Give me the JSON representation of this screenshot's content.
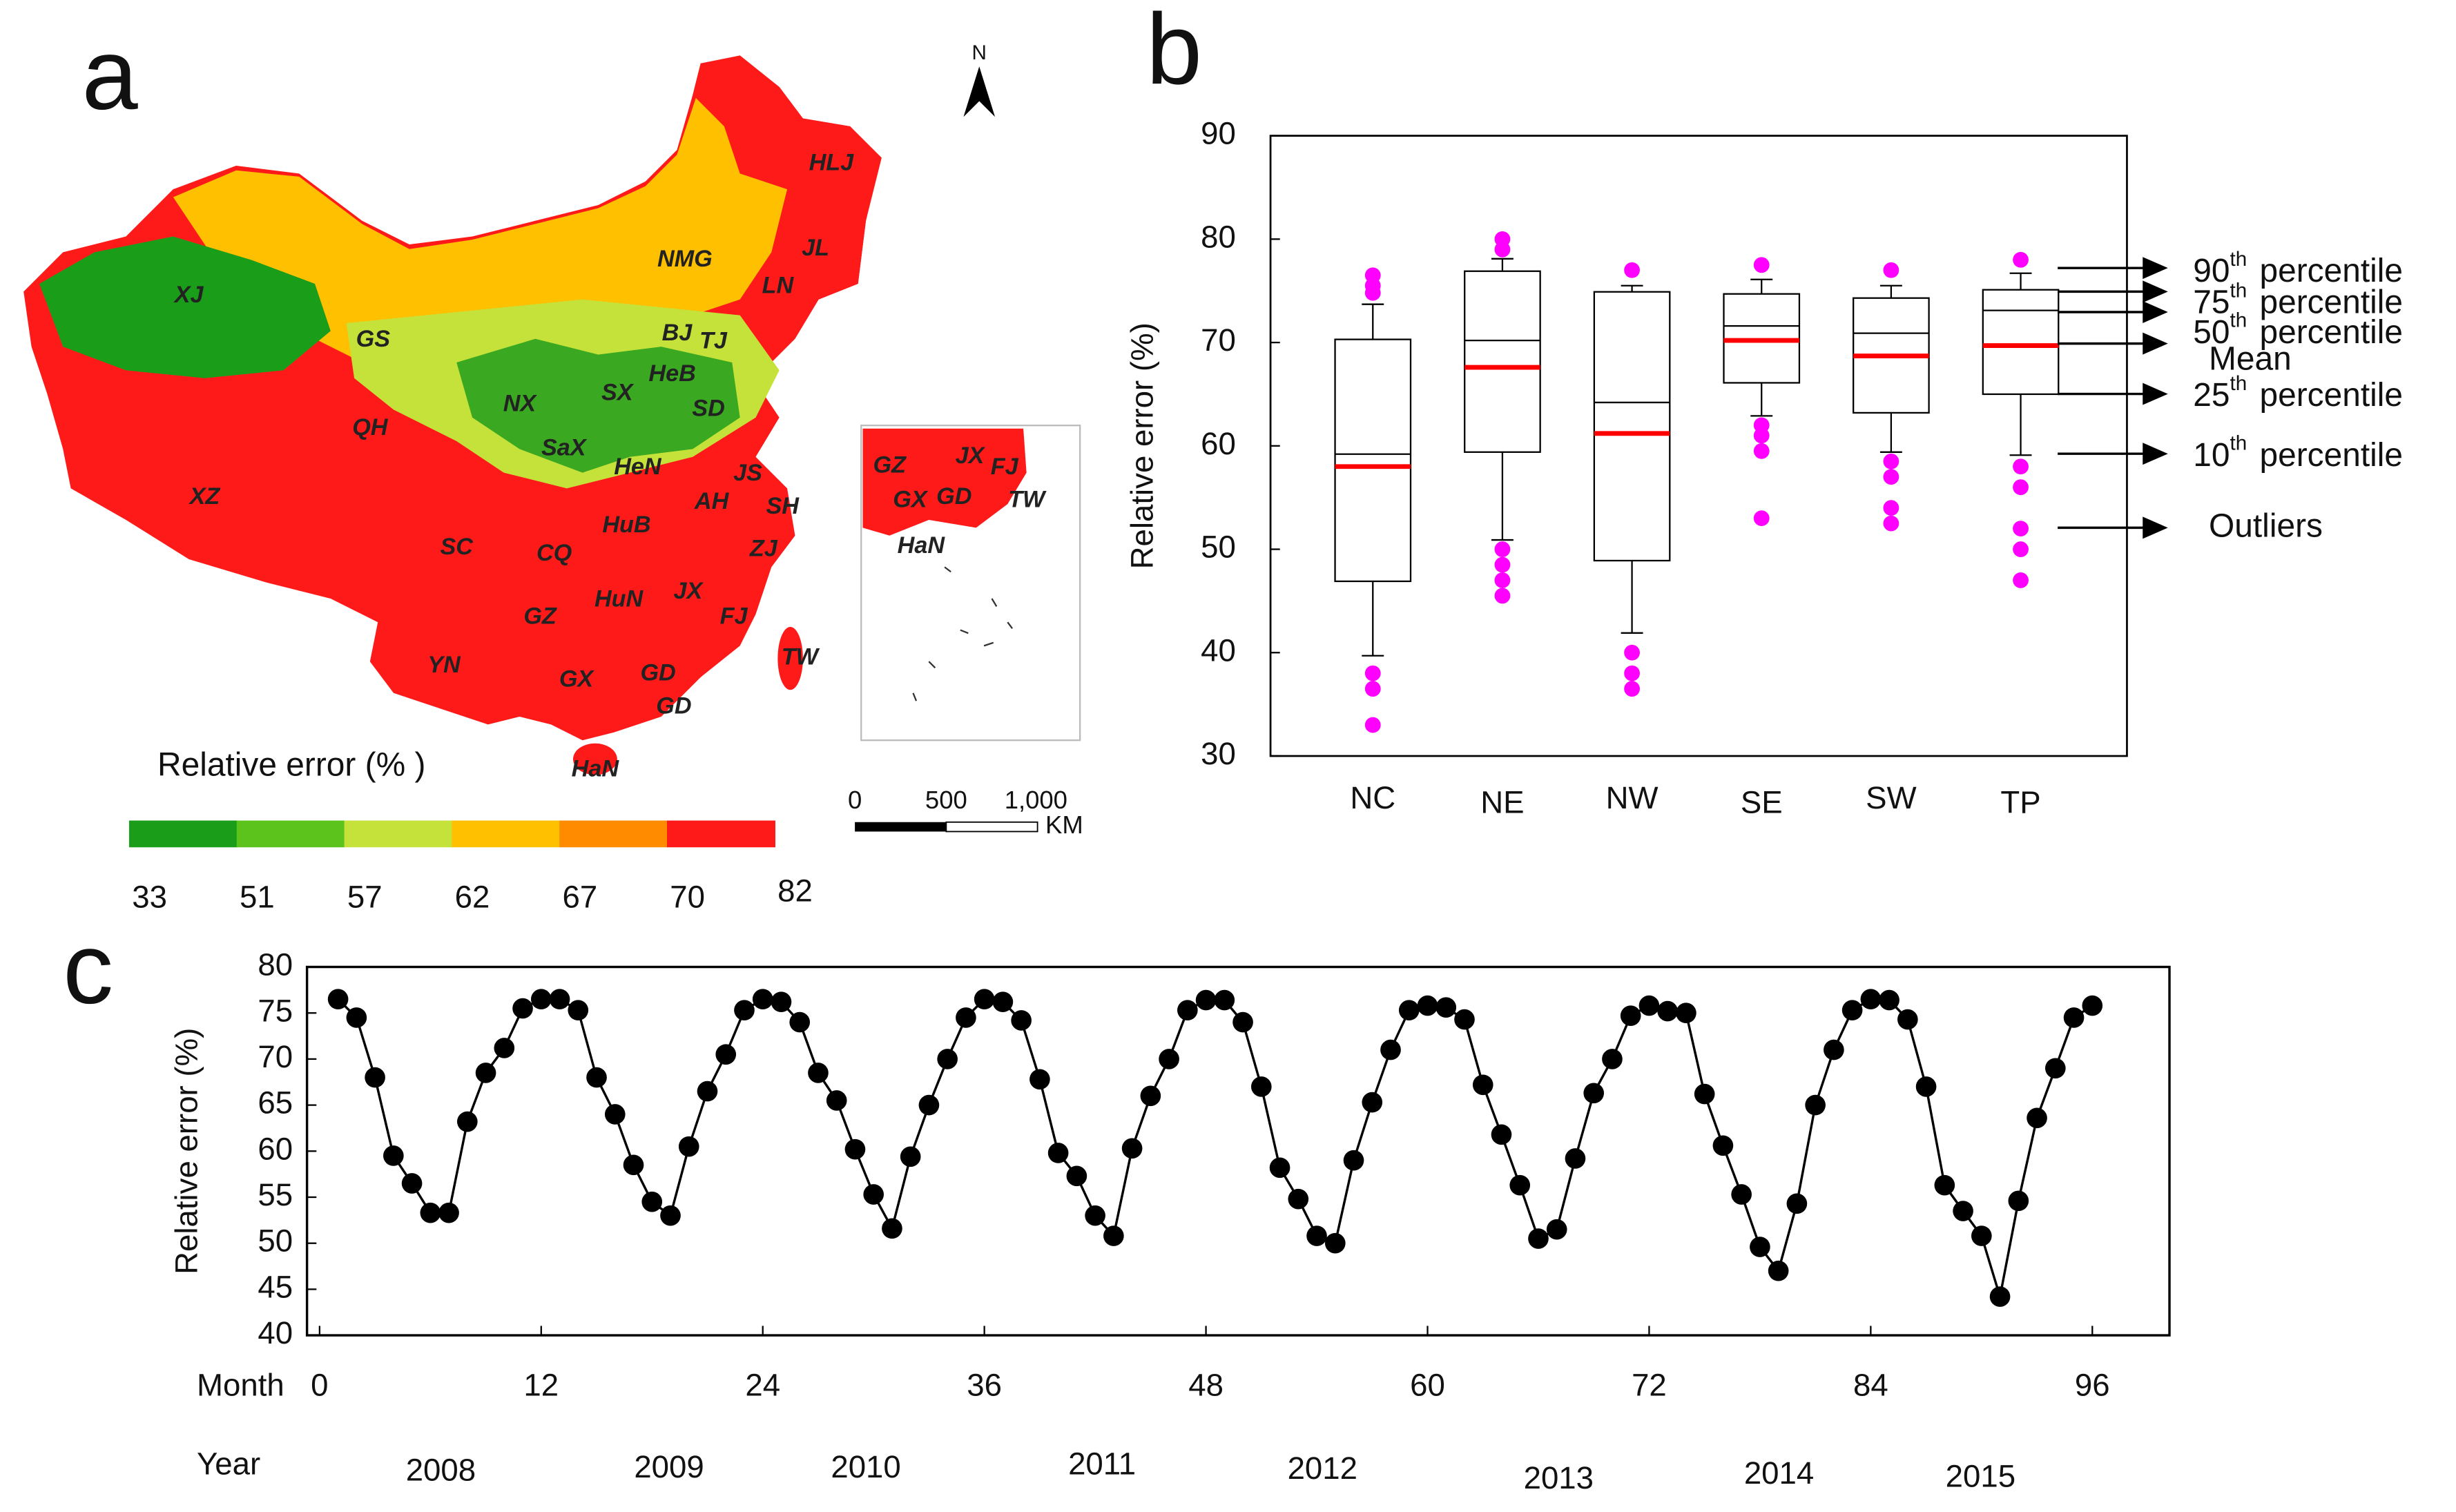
{
  "chart_data": [
    {
      "type": "map",
      "title": "a",
      "north": "N",
      "legend_title": "Relative error (% )",
      "colorbar": {
        "ticks": [
          33,
          51,
          57,
          62,
          67,
          70,
          82
        ],
        "colors": [
          "#1a9e1a",
          "#5cc21c",
          "#c4e23a",
          "#ffc000",
          "#ff8c00",
          "#ff1a1a"
        ]
      },
      "labels": [
        "XJ",
        "GS",
        "QH",
        "XZ",
        "NX",
        "SaX",
        "SX",
        "HeN",
        "BJ",
        "TJ",
        "HeB",
        "SD",
        "NMG",
        "HLJ",
        "JL",
        "LN",
        "JS",
        "AH",
        "SH",
        "ZJ",
        "HuB",
        "SC",
        "CQ",
        "HuN",
        "JX",
        "FJ",
        "GZ",
        "YN",
        "GX",
        "GD",
        "GD",
        "HaN",
        "TW"
      ],
      "inset_labels": [
        "GZ",
        "JX",
        "FJ",
        "GX",
        "GD",
        "TW",
        "HaN"
      ],
      "scale_labels": [
        "0",
        "500",
        "1,000",
        "KM"
      ]
    },
    {
      "type": "box",
      "title": "b",
      "ylabel": "Relative error (%)",
      "ylim": [
        30,
        90
      ],
      "yticks": [
        30,
        40,
        50,
        60,
        70,
        80,
        90
      ],
      "categories": [
        "NC",
        "NE",
        "NW",
        "SE",
        "SW",
        "TP"
      ],
      "median_color": "#000000",
      "mean_color": "#ff0000",
      "outlier_color": "#ff00ff",
      "boxes": [
        {
          "p10": 39.7,
          "p25": 46.9,
          "median": 59.2,
          "mean": 58.0,
          "p75": 70.3,
          "p90": 73.7,
          "outliers": [
            33,
            36.5,
            38,
            74.8,
            75.5,
            76.5
          ]
        },
        {
          "p10": 50.9,
          "p25": 59.4,
          "median": 70.2,
          "mean": 67.6,
          "p75": 76.9,
          "p90": 78.1,
          "outliers": [
            45.5,
            47,
            48.5,
            50,
            79,
            80
          ]
        },
        {
          "p10": 41.9,
          "p25": 48.9,
          "median": 64.2,
          "mean": 61.2,
          "p75": 74.9,
          "p90": 75.5,
          "outliers": [
            36.5,
            38,
            40,
            77
          ]
        },
        {
          "p10": 62.9,
          "p25": 66.1,
          "median": 71.6,
          "mean": 70.2,
          "p75": 74.7,
          "p90": 76.1,
          "outliers": [
            53,
            59.5,
            61,
            62,
            77.5
          ]
        },
        {
          "p10": 59.4,
          "p25": 63.2,
          "median": 70.9,
          "mean": 68.7,
          "p75": 74.3,
          "p90": 75.5,
          "outliers": [
            52.5,
            54,
            57,
            58.5,
            77
          ]
        },
        {
          "p10": 59.1,
          "p25": 65,
          "median": 73.1,
          "mean": 69.7,
          "p75": 75.1,
          "p90": 76.7,
          "outliers": [
            47,
            50,
            52,
            56,
            58,
            78
          ]
        }
      ],
      "annotations": [
        {
          "prefix": "90",
          "sup": "th",
          "text": "percentile"
        },
        {
          "prefix": "75",
          "sup": "th",
          "text": "percentile"
        },
        {
          "prefix": "50",
          "sup": "th",
          "text": "percentile"
        },
        {
          "text": "Mean"
        },
        {
          "prefix": "25",
          "sup": "th",
          "text": "percentile"
        },
        {
          "prefix": "10",
          "sup": "th",
          "text": "percentile"
        },
        {
          "text": "Outliers"
        }
      ]
    },
    {
      "type": "line",
      "title": "c",
      "ylabel": "Relative error (%)",
      "xlabel": "Month",
      "year_label": "Year",
      "years": [
        "2008",
        "2009",
        "2010",
        "2011",
        "2012",
        "2013",
        "2014",
        "2015"
      ],
      "xlim": [
        0,
        96
      ],
      "xticks": [
        0,
        12,
        24,
        36,
        48,
        60,
        72,
        84,
        96
      ],
      "ylim": [
        40,
        80
      ],
      "yticks": [
        40,
        45,
        50,
        55,
        60,
        65,
        70,
        75,
        80
      ],
      "color": "#000000",
      "x": [
        1,
        2,
        3,
        4,
        5,
        6,
        7,
        8,
        9,
        10,
        11,
        12,
        13,
        14,
        15,
        16,
        17,
        18,
        19,
        20,
        21,
        22,
        23,
        24,
        25,
        26,
        27,
        28,
        29,
        30,
        31,
        32,
        33,
        34,
        35,
        36,
        37,
        38,
        39,
        40,
        41,
        42,
        43,
        44,
        45,
        46,
        47,
        48,
        49,
        50,
        51,
        52,
        53,
        54,
        55,
        56,
        57,
        58,
        59,
        60,
        61,
        62,
        63,
        64,
        65,
        66,
        67,
        68,
        69,
        70,
        71,
        72,
        73,
        74,
        75,
        76,
        77,
        78,
        79,
        80,
        81,
        82,
        83,
        84,
        85,
        86,
        87,
        88,
        89,
        90,
        91,
        92,
        93,
        94,
        95,
        96
      ],
      "values": [
        76.5,
        74.5,
        68,
        59.5,
        56.5,
        53.3,
        53.3,
        63.2,
        68.5,
        71.2,
        75.5,
        76.5,
        76.5,
        75.3,
        68,
        64,
        58.5,
        54.5,
        53,
        60.5,
        66.5,
        70.5,
        75.3,
        76.5,
        76.2,
        74,
        68.5,
        65.5,
        60.2,
        55.3,
        51.6,
        59.4,
        65,
        70,
        74.5,
        76.5,
        76.2,
        74.2,
        67.8,
        59.8,
        57.3,
        53,
        50.8,
        60.3,
        66,
        70,
        75.3,
        76.4,
        76.4,
        74,
        67,
        58.2,
        54.8,
        50.8,
        50,
        59,
        65.3,
        71,
        75.3,
        75.8,
        75.6,
        74.3,
        67.2,
        61.8,
        56.3,
        50.5,
        51.5,
        59.2,
        66.3,
        70,
        74.7,
        75.8,
        75.2,
        75,
        66.2,
        60.6,
        55.3,
        49.6,
        47,
        54.3,
        65,
        71,
        75.3,
        76.5,
        76.4,
        74.3,
        67,
        56.3,
        53.5,
        50.8,
        44.2,
        54.6,
        63.6,
        69,
        74.5,
        75.8
      ]
    }
  ]
}
